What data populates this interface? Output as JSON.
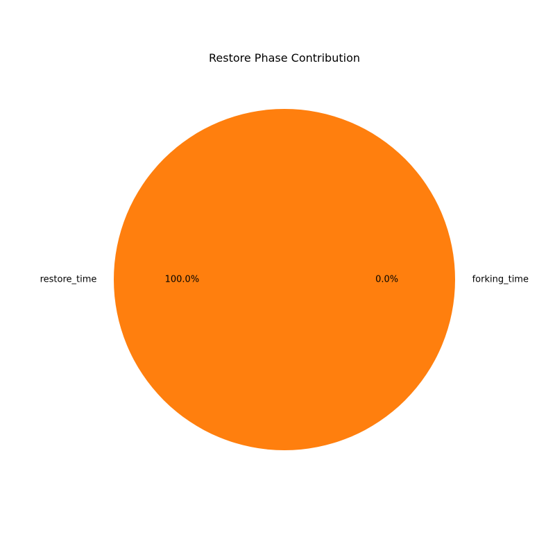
{
  "chart_data": {
    "type": "pie",
    "title": "Restore Phase Contribution",
    "labels": [
      "forking_time",
      "restore_time"
    ],
    "values": [
      0.0,
      100.0
    ],
    "percent_labels": [
      "0.0%",
      "100.0%"
    ],
    "colors": [
      "#1f77b4",
      "#ff7f0e"
    ],
    "start_angle_deg": 0,
    "direction": "counterclockwise",
    "legend": "none"
  }
}
